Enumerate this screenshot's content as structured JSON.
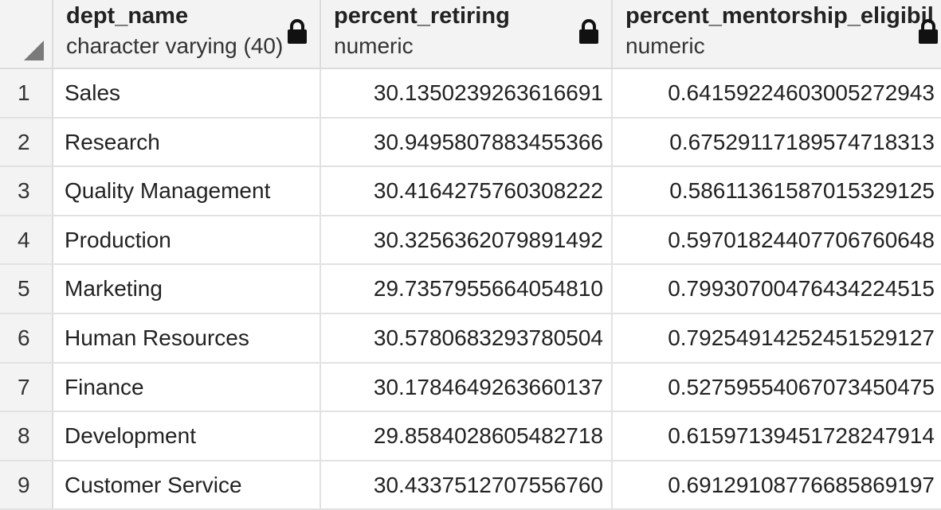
{
  "columns": [
    {
      "name": "dept_name",
      "type": "character varying (40)",
      "lock_icon": "lock-icon"
    },
    {
      "name": "percent_retiring",
      "type": "numeric",
      "lock_icon": "lock-icon"
    },
    {
      "name": "percent_mentorship_eligibil",
      "type": "numeric",
      "lock_icon": "lock-icon"
    }
  ],
  "rows": [
    {
      "num": "1",
      "dept_name": "Sales",
      "percent_retiring": "30.1350239263616691",
      "percent_mentorship": "0.64159224603005272943"
    },
    {
      "num": "2",
      "dept_name": "Research",
      "percent_retiring": "30.9495807883455366",
      "percent_mentorship": "0.67529117189574718313"
    },
    {
      "num": "3",
      "dept_name": "Quality Management",
      "percent_retiring": "30.4164275760308222",
      "percent_mentorship": "0.58611361587015329125"
    },
    {
      "num": "4",
      "dept_name": "Production",
      "percent_retiring": "30.3256362079891492",
      "percent_mentorship": "0.59701824407706760648"
    },
    {
      "num": "5",
      "dept_name": "Marketing",
      "percent_retiring": "29.7357955664054810",
      "percent_mentorship": "0.79930700476434224515"
    },
    {
      "num": "6",
      "dept_name": "Human Resources",
      "percent_retiring": "30.5780683293780504",
      "percent_mentorship": "0.79254914252451529127"
    },
    {
      "num": "7",
      "dept_name": "Finance",
      "percent_retiring": "30.1784649263660137",
      "percent_mentorship": "0.52759554067073450475"
    },
    {
      "num": "8",
      "dept_name": "Development",
      "percent_retiring": "29.8584028605482718",
      "percent_mentorship": "0.61597139451728247914"
    },
    {
      "num": "9",
      "dept_name": "Customer Service",
      "percent_retiring": "30.4337512707556760",
      "percent_mentorship": "0.69129108776685869197"
    }
  ]
}
